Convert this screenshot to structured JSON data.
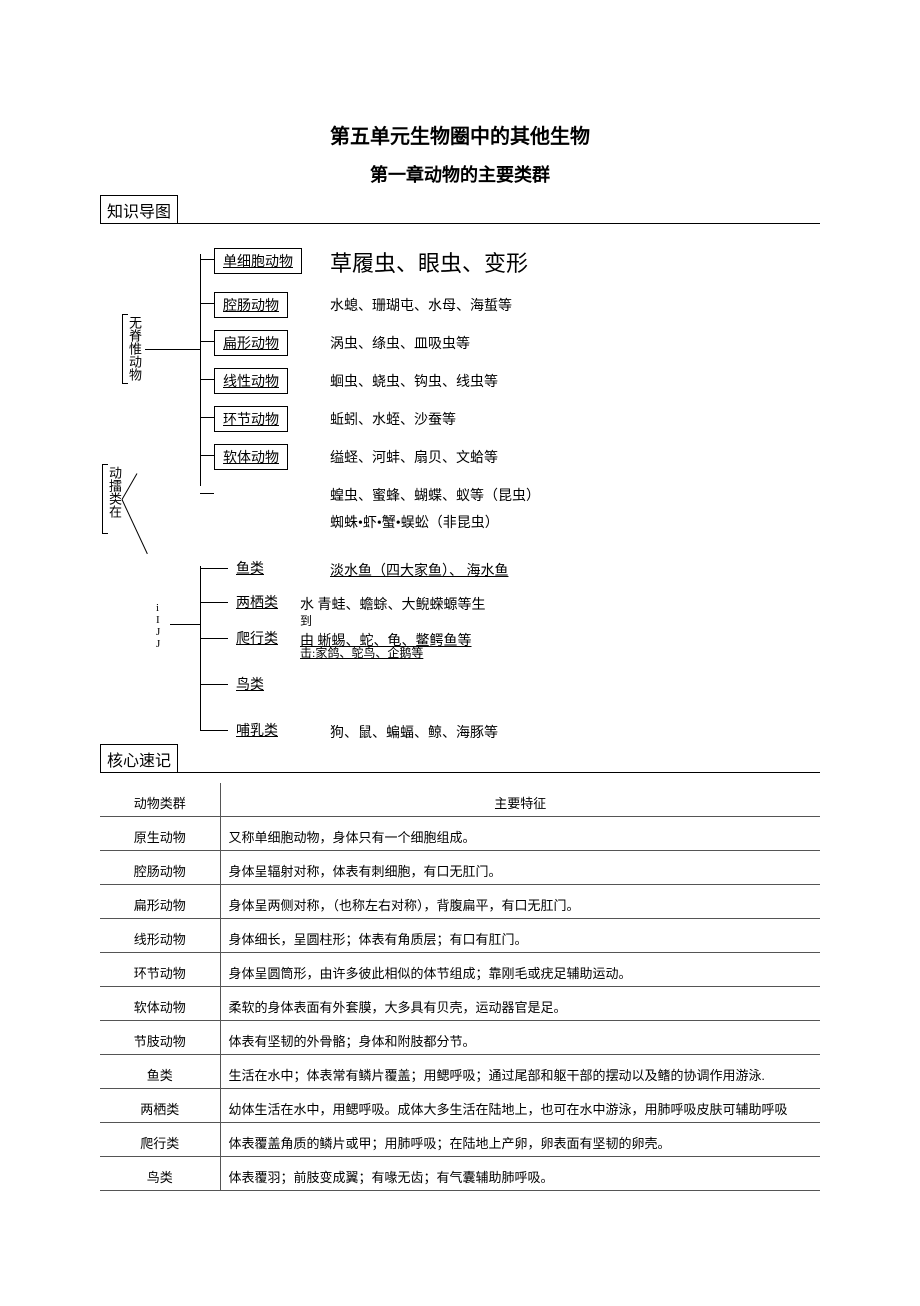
{
  "titles": {
    "main": "第五单元生物圈中的其他生物",
    "sub": "第一章动物的主要类群"
  },
  "sections": {
    "diagram_header": "知识导图",
    "table_header": "核心速记"
  },
  "diagram": {
    "root_label": "动擂类在",
    "invertebrate_label": "无脊惟动物",
    "vertebrate_deco": "i\nI\nJ\nJ",
    "invertebrate": [
      {
        "name": "单细胞动物",
        "examples": "草履虫、眼虫、变形",
        "large": true
      },
      {
        "name": "腔肠动物",
        "examples": "水螅、珊瑚屯、水母、海蜇等"
      },
      {
        "name": "扁形动物",
        "examples": "涡虫、绦虫、皿吸虫等"
      },
      {
        "name": "线性动物",
        "examples": "蛔虫、蛲虫、钩虫、线虫等"
      },
      {
        "name": "环节动物",
        "examples": "蚯蚓、水蛭、沙蚕等"
      },
      {
        "name": "软体动物",
        "examples": "缢蛏、河蚌、扇贝、文蛤等"
      },
      {
        "name": "",
        "examples": "蝗虫、蜜蜂、蝴蝶、蚁等（昆虫）"
      }
    ],
    "extra_arthropod": "蜘蛛•虾•蟹•蜈蚣（非昆虫）",
    "vertebrate": [
      {
        "name": "鱼类",
        "examples": "淡水鱼（四大家鱼）、 海水鱼",
        "underline": true
      },
      {
        "name": "两栖类",
        "examples": "水  青蛙、蟾蜍、大鲵蝾螈等生"
      },
      {
        "name": "",
        "examples_sub": "到"
      },
      {
        "name": "爬行类",
        "examples": "由  蜥蜴、蛇、龟、鳖鳄鱼等",
        "underline": true
      },
      {
        "name": "",
        "examples_sub": "击:家鸽、鸵鸟、企鹅等"
      },
      {
        "name": "鸟类",
        "examples": ""
      },
      {
        "name": "哺乳类",
        "examples": "狗、鼠、蝙蝠、鲸、海豚等"
      }
    ]
  },
  "table": {
    "headers": [
      "动物类群",
      "主要特征"
    ],
    "rows": [
      [
        "原生动物",
        "又称单细胞动物，身体只有一个细胞组成。"
      ],
      [
        "腔肠动物",
        "身体呈辐射对称，体表有刺细胞，有口无肛门。"
      ],
      [
        "扁形动物",
        "身体呈两侧对称，（也称左右对称），背腹扁平，有口无肛门。"
      ],
      [
        "线形动物",
        "身体细长，呈圆柱形；体表有角质层；有口有肛门。"
      ],
      [
        "环节动物",
        "身体呈圆筒形，由许多彼此相似的体节组成；靠刚毛或疣足辅助运动。"
      ],
      [
        "软体动物",
        "柔软的身体表面有外套膜，大多具有贝壳，运动器官是足。"
      ],
      [
        "节肢动物",
        "体表有坚韧的外骨骼；身体和附肢都分节。"
      ],
      [
        "鱼类",
        "生活在水中；体表常有鳞片覆盖；用鳃呼吸；通过尾部和躯干部的摆动以及鳍的协调作用游泳."
      ],
      [
        "两栖类",
        "幼体生活在水中，用鳃呼吸。成体大多生活在陆地上，也可在水中游泳，用肺呼吸皮肤可辅助呼吸"
      ],
      [
        "爬行类",
        "体表覆盖角质的鳞片或甲；用肺呼吸；在陆地上产卵，卵表面有坚韧的卵壳。"
      ],
      [
        "鸟类",
        "体表覆羽；前肢变成翼；有喙无齿；有气囊辅助肺呼吸。"
      ]
    ]
  },
  "colors": {
    "text": "#000000",
    "background": "#ffffff",
    "border": "#000000",
    "table_border": "#555555"
  }
}
